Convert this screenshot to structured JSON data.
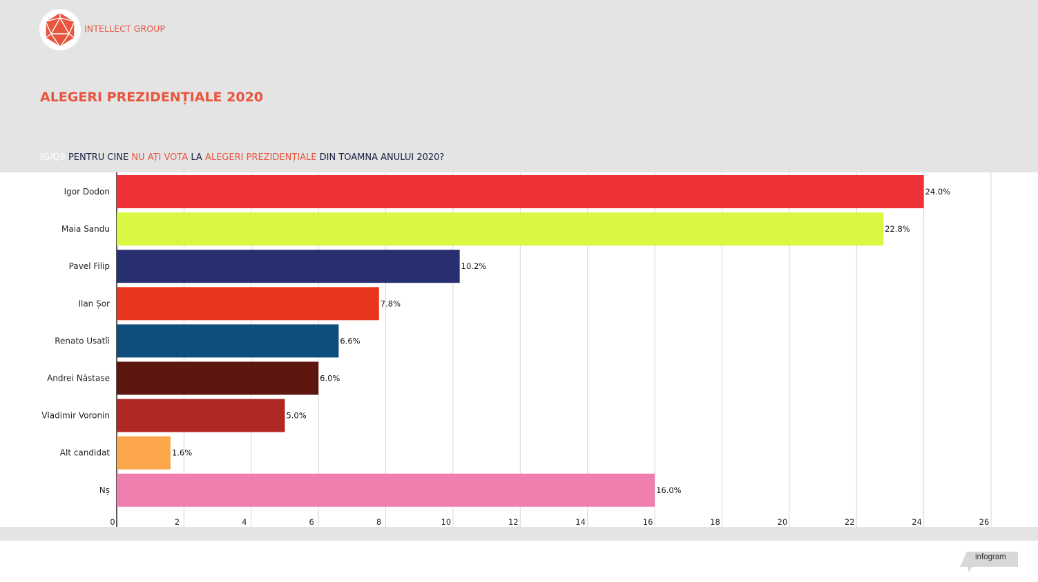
{
  "brand": {
    "name": "INTELLECT GROUP",
    "accent_color": "#e8553f",
    "logo_icon": "icosahedron-logo-icon"
  },
  "title": "ALEGERI PREZIDENȚIALE 2020",
  "question": {
    "code": "IG/Q9",
    "part1": "PENTRU CINE",
    "hl1": "NU AȚI VOTA",
    "part2": "LA",
    "hl2": "ALEGERI  PREZIDENȚIALE",
    "part3": "DIN TOAMNA ANULUI 2020?"
  },
  "chart_data": {
    "type": "bar",
    "orientation": "horizontal",
    "title": "ALEGERI PREZIDENȚIALE 2020",
    "xlabel": "",
    "ylabel": "",
    "xlim": [
      0,
      26
    ],
    "xticks": [
      0,
      2,
      4,
      6,
      8,
      10,
      12,
      14,
      16,
      18,
      20,
      22,
      24,
      26
    ],
    "categories": [
      "Igor Dodon",
      "Maia Sandu",
      "Pavel Filip",
      "Ilan Șor",
      "Renato Usatîi",
      "Andrei Năstase",
      "Vladimir Voronin",
      "Alt candidat",
      "Nș"
    ],
    "values": [
      24.0,
      22.8,
      10.2,
      7.8,
      6.6,
      6.0,
      5.0,
      1.6,
      16.0
    ],
    "value_labels": [
      "24.0%",
      "22.8%",
      "10.2%",
      "7.8%",
      "6.6%",
      "6.0%",
      "5.0%",
      "1.6%",
      "16.0%"
    ],
    "colors": [
      "#ee3238",
      "#d8f843",
      "#282f70",
      "#e8361e",
      "#0d4e7c",
      "#5e1610",
      "#b02823",
      "#fba64a",
      "#f07fb0"
    ],
    "grid": true,
    "legend": "none"
  },
  "footer": {
    "badge": "infogram"
  }
}
